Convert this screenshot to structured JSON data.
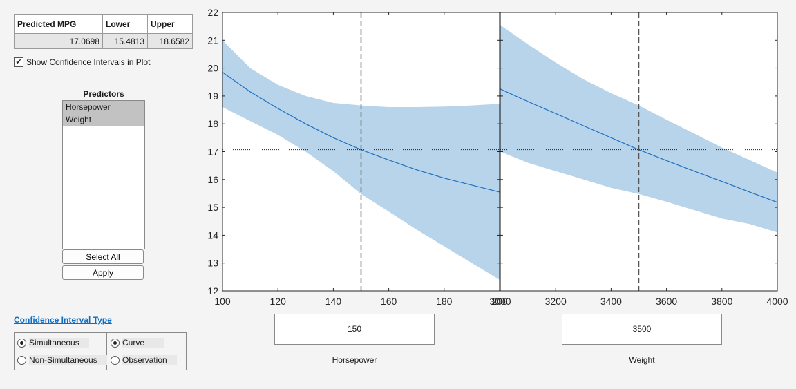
{
  "results": {
    "headers": [
      "Predicted MPG",
      "Lower",
      "Upper"
    ],
    "values": [
      "17.0698",
      "15.4813",
      "18.6582"
    ]
  },
  "show_ci": {
    "label": "Show Confidence Intervals in Plot",
    "checked": true
  },
  "predictors": {
    "title": "Predictors",
    "items": [
      "Horsepower",
      "Weight"
    ],
    "select_all_label": "Select All",
    "apply_label": "Apply"
  },
  "ci_type": {
    "title": "Confidence Interval Type",
    "group1": [
      {
        "label": "Simultaneous",
        "selected": true
      },
      {
        "label": "Non-Simultaneous",
        "selected": false
      }
    ],
    "group2": [
      {
        "label": "Curve",
        "selected": true
      },
      {
        "label": "Observation",
        "selected": false
      }
    ]
  },
  "sliders": [
    {
      "name": "Horsepower",
      "value": "150"
    },
    {
      "name": "Weight",
      "value": "3500"
    }
  ],
  "chart_data": {
    "type": "line",
    "ylim": [
      12,
      22
    ],
    "yticks": [
      "12",
      "13",
      "14",
      "15",
      "16",
      "17",
      "18",
      "19",
      "20",
      "21",
      "22"
    ],
    "reference_y": 17.0698,
    "band_color": "#b8d4ea",
    "line_color": "#1f70c1",
    "panels": [
      {
        "xlabel": "Horsepower",
        "xlim": [
          100,
          200
        ],
        "xticks": [
          "100",
          "120",
          "140",
          "160",
          "180",
          "200"
        ],
        "cursor_x": 150,
        "x": [
          100,
          110,
          120,
          130,
          140,
          150,
          160,
          170,
          180,
          190,
          200
        ],
        "fit": [
          19.85,
          19.15,
          18.55,
          18.0,
          17.5,
          17.07,
          16.7,
          16.35,
          16.05,
          15.8,
          15.55
        ],
        "upper": [
          21.0,
          20.0,
          19.4,
          19.0,
          18.75,
          18.66,
          18.6,
          18.6,
          18.62,
          18.66,
          18.72
        ],
        "lower": [
          18.6,
          18.1,
          17.6,
          17.0,
          16.3,
          15.48,
          14.85,
          14.2,
          13.6,
          13.0,
          12.4
        ]
      },
      {
        "xlabel": "Weight",
        "xlim": [
          3000,
          4000
        ],
        "xticks": [
          "3000",
          "3200",
          "3400",
          "3600",
          "3800",
          "4000"
        ],
        "cursor_x": 3500,
        "x": [
          3000,
          3100,
          3200,
          3300,
          3400,
          3500,
          3600,
          3700,
          3800,
          3900,
          4000
        ],
        "fit": [
          19.25,
          18.8,
          18.37,
          17.93,
          17.5,
          17.07,
          16.68,
          16.3,
          15.93,
          15.55,
          15.18
        ],
        "upper": [
          21.55,
          20.85,
          20.2,
          19.6,
          19.1,
          18.66,
          18.15,
          17.65,
          17.15,
          16.7,
          16.25
        ],
        "lower": [
          17.0,
          16.6,
          16.3,
          16.0,
          15.7,
          15.48,
          15.2,
          14.9,
          14.6,
          14.4,
          14.1
        ]
      }
    ]
  }
}
